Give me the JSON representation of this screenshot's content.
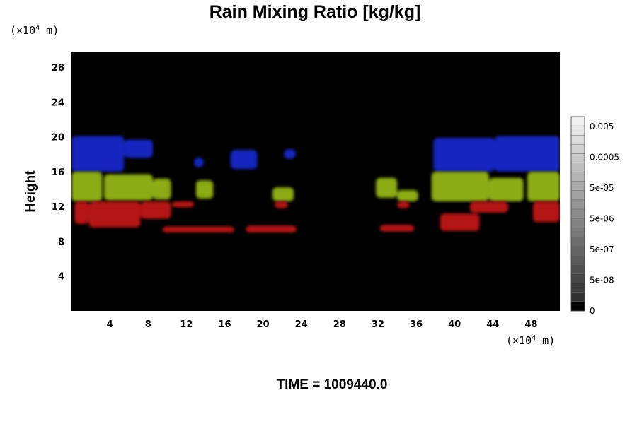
{
  "chart_data": {
    "type": "heatmap",
    "title": "Rain Mixing Ratio [kg/kg]",
    "ylabel": "Height",
    "xlabel": "",
    "x_unit": {
      "prefix": "(×10",
      "exp": "4",
      "suffix": " m)"
    },
    "y_unit": {
      "prefix": "(×10",
      "exp": "4",
      "suffix": " m)"
    },
    "xlim": [
      0,
      51
    ],
    "ylim": [
      0,
      29.8
    ],
    "x_ticks": [
      "4",
      "8",
      "12",
      "16",
      "20",
      "24",
      "28",
      "32",
      "36",
      "40",
      "44",
      "48"
    ],
    "y_ticks": [
      "4",
      "8",
      "12",
      "16",
      "20",
      "24",
      "28"
    ],
    "background_color": "#000000",
    "layers": [
      {
        "color": "#1428d2",
        "ymin": 16,
        "ymax": 20.2
      },
      {
        "color": "#9bbe14",
        "ymin": 12.6,
        "ymax": 16
      },
      {
        "color": "#c81414",
        "ymin": 8.6,
        "ymax": 12.6
      }
    ],
    "regions": [
      {
        "layer": 0,
        "x": [
          0,
          5.5
        ],
        "y": [
          16,
          20.1
        ]
      },
      {
        "layer": 0,
        "x": [
          5.5,
          8.5
        ],
        "y": [
          17.6,
          19.7
        ]
      },
      {
        "layer": 0,
        "x": [
          16.6,
          19.4
        ],
        "y": [
          16.3,
          18.5
        ]
      },
      {
        "layer": 0,
        "x": [
          12.8,
          13.8
        ],
        "y": [
          16.5,
          17.6
        ]
      },
      {
        "layer": 0,
        "x": [
          22.2,
          23.4
        ],
        "y": [
          17.5,
          18.6
        ]
      },
      {
        "layer": 0,
        "x": [
          37.8,
          44.2
        ],
        "y": [
          16,
          19.9
        ]
      },
      {
        "layer": 0,
        "x": [
          44.2,
          51
        ],
        "y": [
          16,
          20.1
        ]
      },
      {
        "layer": 1,
        "x": [
          0,
          3.2
        ],
        "y": [
          12.6,
          16
        ]
      },
      {
        "layer": 1,
        "x": [
          3.4,
          8.5
        ],
        "y": [
          12.7,
          15.7
        ]
      },
      {
        "layer": 1,
        "x": [
          8.5,
          10.4
        ],
        "y": [
          12.8,
          15.2
        ]
      },
      {
        "layer": 1,
        "x": [
          13.0,
          14.8
        ],
        "y": [
          12.9,
          15.0
        ]
      },
      {
        "layer": 1,
        "x": [
          21.0,
          23.2
        ],
        "y": [
          12.6,
          14.2
        ]
      },
      {
        "layer": 1,
        "x": [
          31.8,
          34.0
        ],
        "y": [
          13.0,
          15.3
        ]
      },
      {
        "layer": 1,
        "x": [
          34.0,
          36.2
        ],
        "y": [
          12.6,
          13.9
        ]
      },
      {
        "layer": 1,
        "x": [
          37.6,
          43.6
        ],
        "y": [
          12.6,
          16
        ]
      },
      {
        "layer": 1,
        "x": [
          43.6,
          47.2
        ],
        "y": [
          12.6,
          15.3
        ]
      },
      {
        "layer": 1,
        "x": [
          47.6,
          51
        ],
        "y": [
          12.6,
          16
        ]
      },
      {
        "layer": 2,
        "x": [
          0.3,
          1.8
        ],
        "y": [
          10.0,
          12.6
        ]
      },
      {
        "layer": 2,
        "x": [
          1.8,
          7.2
        ],
        "y": [
          9.6,
          12.6
        ]
      },
      {
        "layer": 2,
        "x": [
          7.2,
          10.4
        ],
        "y": [
          10.6,
          12.6
        ]
      },
      {
        "layer": 2,
        "x": [
          10.5,
          12.8
        ],
        "y": [
          11.9,
          12.6
        ]
      },
      {
        "layer": 2,
        "x": [
          9.5,
          17.0
        ],
        "y": [
          9.0,
          9.7
        ]
      },
      {
        "layer": 2,
        "x": [
          18.2,
          23.5
        ],
        "y": [
          9.0,
          9.8
        ]
      },
      {
        "layer": 2,
        "x": [
          21.2,
          22.6
        ],
        "y": [
          11.8,
          12.6
        ]
      },
      {
        "layer": 2,
        "x": [
          32.2,
          35.8
        ],
        "y": [
          9.1,
          9.9
        ]
      },
      {
        "layer": 2,
        "x": [
          34.0,
          35.3
        ],
        "y": [
          11.8,
          12.6
        ]
      },
      {
        "layer": 2,
        "x": [
          38.5,
          42.6
        ],
        "y": [
          9.2,
          11.2
        ]
      },
      {
        "layer": 2,
        "x": [
          41.6,
          45.6
        ],
        "y": [
          11.3,
          12.6
        ]
      },
      {
        "layer": 2,
        "x": [
          48.2,
          51
        ],
        "y": [
          10.2,
          12.6
        ]
      }
    ],
    "colorbar": {
      "labels": [
        "0.005",
        "0.0005",
        "5e-05",
        "5e-06",
        "5e-07",
        "5e-08",
        "0"
      ],
      "levels": 21
    }
  },
  "time_label": "TIME = 1009440.0"
}
